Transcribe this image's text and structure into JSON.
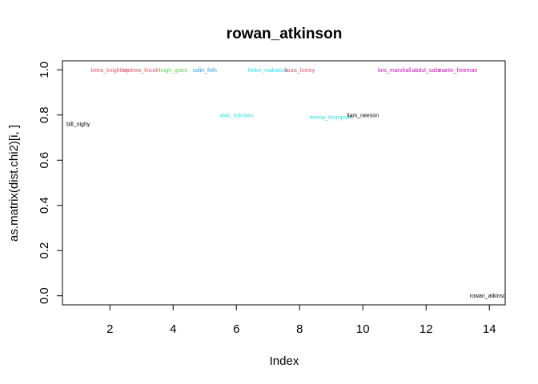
{
  "chart_data": {
    "type": "scatter",
    "title": "rowan_atkinson",
    "xlabel": "Index",
    "ylabel": "as.matrix(dist.chi2)[i, ]",
    "xlim": [
      0.5,
      14.5
    ],
    "ylim": [
      -0.04,
      1.04
    ],
    "xticks": [
      2,
      4,
      6,
      8,
      10,
      12,
      14
    ],
    "yticks": [
      0.0,
      0.2,
      0.4,
      0.6,
      0.8,
      1.0
    ],
    "xtick_labels": [
      "2",
      "4",
      "6",
      "8",
      "10",
      "12",
      "14"
    ],
    "ytick_labels": [
      "0.0",
      "0.2",
      "0.4",
      "0.6",
      "0.8",
      "1.0"
    ],
    "grid": false,
    "legend": "none",
    "points": [
      {
        "x": 1,
        "y": 0.76,
        "label": "bill_nighy",
        "color": "#000000"
      },
      {
        "x": 2,
        "y": 1.0,
        "label": "keira_knightley",
        "color": "#DF536B"
      },
      {
        "x": 3,
        "y": 1.0,
        "label": "andrew_lincoln",
        "color": "#DF536B"
      },
      {
        "x": 4,
        "y": 1.0,
        "label": "hugh_grant",
        "color": "#61D04F"
      },
      {
        "x": 5,
        "y": 1.0,
        "label": "colin_firth",
        "color": "#2297E6"
      },
      {
        "x": 6,
        "y": 0.8,
        "label": "alan_rickman",
        "color": "#28E2E5"
      },
      {
        "x": 7,
        "y": 1.0,
        "label": "heike_makatsch",
        "color": "#28E2E5"
      },
      {
        "x": 8,
        "y": 1.0,
        "label": "laura_linney",
        "color": "#DF536B"
      },
      {
        "x": 9,
        "y": 0.79,
        "label": "emma_thompson",
        "color": "#28E2E5"
      },
      {
        "x": 10,
        "y": 0.8,
        "label": "liam_neeson",
        "color": "#000000"
      },
      {
        "x": 11,
        "y": 1.0,
        "label": "kris_marshall",
        "color": "#CD0BBC"
      },
      {
        "x": 12,
        "y": 1.0,
        "label": "abdul_salis",
        "color": "#CD0BBC"
      },
      {
        "x": 13,
        "y": 1.0,
        "label": "martin_freeman",
        "color": "#CD0BBC"
      },
      {
        "x": 14,
        "y": 0.0,
        "label": "rowan_atkinson",
        "color": "#000000"
      }
    ]
  }
}
